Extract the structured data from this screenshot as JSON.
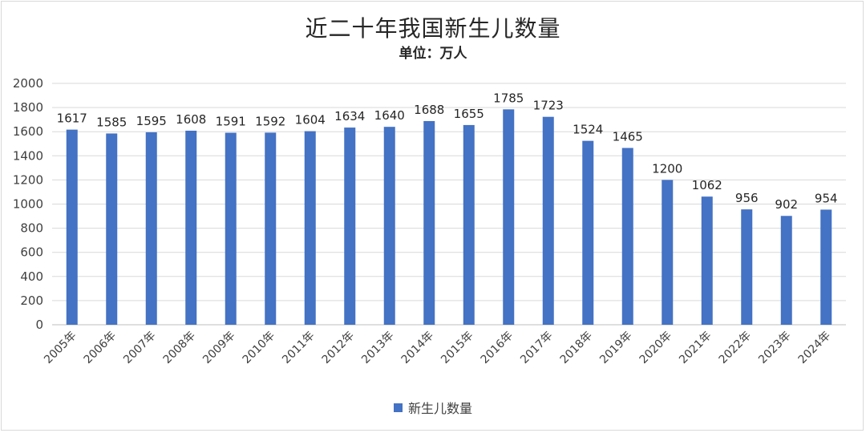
{
  "chart_data": {
    "type": "bar",
    "title": "近二十年我国新生儿数量",
    "subtitle": "单位：万人",
    "categories": [
      "2005年",
      "2006年",
      "2007年",
      "2008年",
      "2009年",
      "2010年",
      "2011年",
      "2012年",
      "2013年",
      "2014年",
      "2015年",
      "2016年",
      "2017年",
      "2018年",
      "2019年",
      "2020年",
      "2021年",
      "2022年",
      "2023年",
      "2024年"
    ],
    "series": [
      {
        "name": "新生儿数量",
        "values": [
          1617,
          1585,
          1595,
          1608,
          1591,
          1592,
          1604,
          1634,
          1640,
          1688,
          1655,
          1785,
          1723,
          1524,
          1465,
          1200,
          1062,
          956,
          902,
          954
        ],
        "color": "#4472c4"
      }
    ],
    "ylim": [
      0,
      2000
    ],
    "yticks": [
      0,
      200,
      400,
      600,
      800,
      1000,
      1200,
      1400,
      1600,
      1800,
      2000
    ],
    "grid": true,
    "legend_position": "bottom",
    "data_labels": true
  }
}
